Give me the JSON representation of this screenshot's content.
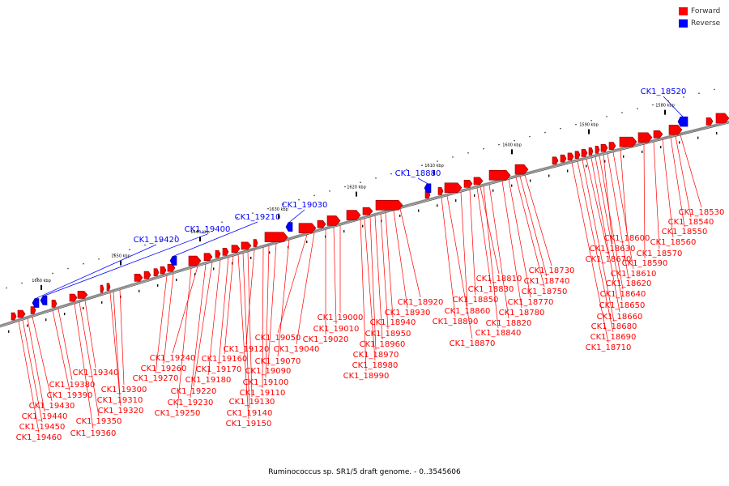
{
  "legend": {
    "forward_label": "Forward",
    "reverse_label": "Reverse",
    "forward_color": "#ff0000",
    "reverse_color": "#0000ff"
  },
  "caption": "Ruminococcus sp. SR1/5 draft genome. - 0..3545606",
  "genome_map": {
    "axis_color": "#808080",
    "ticks": [
      "1580 kbp",
      "1590 kbp",
      "1600 kbp",
      "1610 kbp",
      "1620 kbp",
      "1630 kbp",
      "1640 kbp",
      "1650 kbp",
      "1660 kbp"
    ],
    "reverse_genes": [
      "CK1_18520",
      "CK1_18880",
      "CK1_19030",
      "CK1_19210",
      "CK1_19400",
      "CK1_19420"
    ],
    "forward_genes": [
      "CK1_18530",
      "CK1_18540",
      "CK1_18550",
      "CK1_18560",
      "CK1_18570",
      "CK1_18590",
      "CK1_18600",
      "CK1_18610",
      "CK1_18620",
      "CK1_18630",
      "CK1_18640",
      "CK1_18650",
      "CK1_18660",
      "CK1_18670",
      "CK1_18680",
      "CK1_18690",
      "CK1_18710",
      "CK1_18730",
      "CK1_18740",
      "CK1_18750",
      "CK1_18770",
      "CK1_18780",
      "CK1_18810",
      "CK1_18820",
      "CK1_18830",
      "CK1_18840",
      "CK1_18850",
      "CK1_18860",
      "CK1_18870",
      "CK1_18890",
      "CK1_18920",
      "CK1_18930",
      "CK1_18940",
      "CK1_18950",
      "CK1_18960",
      "CK1_18970",
      "CK1_18980",
      "CK1_18990",
      "CK1_19000",
      "CK1_19010",
      "CK1_19020",
      "CK1_19040",
      "CK1_19050",
      "CK1_19070",
      "CK1_19090",
      "CK1_19100",
      "CK1_19110",
      "CK1_19120",
      "CK1_19130",
      "CK1_19140",
      "CK1_19150",
      "CK1_19160",
      "CK1_19170",
      "CK1_19180",
      "CK1_19220",
      "CK1_19230",
      "CK1_19240",
      "CK1_19250",
      "CK1_19260",
      "CK1_19270",
      "CK1_19300",
      "CK1_19310",
      "CK1_19320",
      "CK1_19340",
      "CK1_19350",
      "CK1_19360",
      "CK1_19380",
      "CK1_19390",
      "CK1_19430",
      "CK1_19440",
      "CK1_19450",
      "CK1_19460"
    ]
  }
}
